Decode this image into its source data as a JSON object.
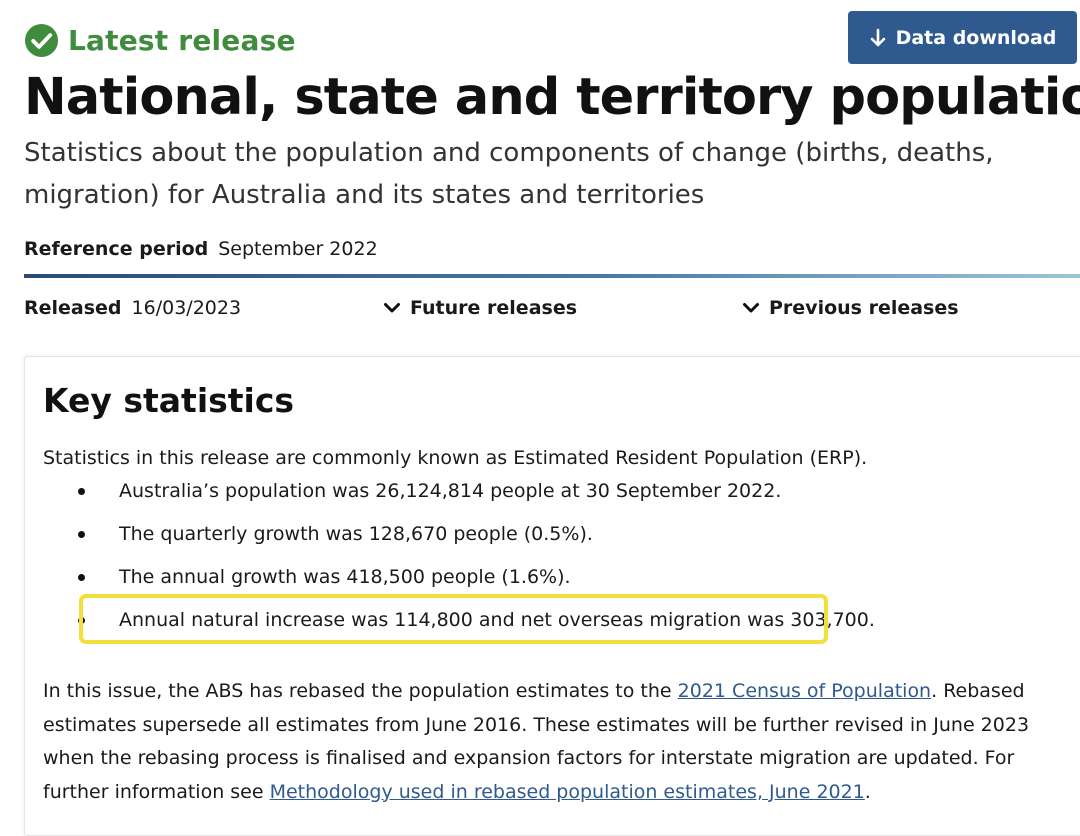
{
  "status": {
    "icon": "check-circle-icon",
    "label": "Latest release",
    "color": "#3f8c3f"
  },
  "download_button": {
    "icon": "arrow-down-icon",
    "label": "Data download",
    "color": "#2f5a8f"
  },
  "page": {
    "title": "National, state and territory population",
    "subtitle": "Statistics about the population and components of change (births, deaths, migration) for Australia and its states and territories"
  },
  "reference_period": {
    "label": "Reference period",
    "value": "September 2022"
  },
  "release_bar": {
    "released_label": "Released",
    "released_value": "16/03/2023",
    "future_releases": "Future releases",
    "previous_releases": "Previous releases",
    "toggle_icon": "chevron-down-icon"
  },
  "key_statistics": {
    "title": "Key statistics",
    "intro": "Statistics in this release are commonly known as Estimated Resident Population (ERP).",
    "bullets": [
      "Australia’s population was 26,124,814 people at 30 September 2022.",
      "The quarterly growth was 128,670 people (0.5%).",
      "The annual growth was 418,500 people (1.6%).",
      "Annual natural increase was 114,800 and net overseas migration was 303,700."
    ],
    "highlighted_bullet_index": 3,
    "highlight_color": "#f2df3a",
    "paragraph": {
      "text_1": "In this issue, the ABS has rebased the population estimates to the ",
      "link_1": "2021 Census of Population",
      "text_2": ". Rebased estimates supersede all estimates from June 2016. These estimates will be further revised in June 2023 when the rebasing process is finalised and expansion factors for interstate migration are updated.  For further information see ",
      "link_2": "Methodology used in rebased population estimates, June 2021",
      "text_3": "."
    }
  }
}
